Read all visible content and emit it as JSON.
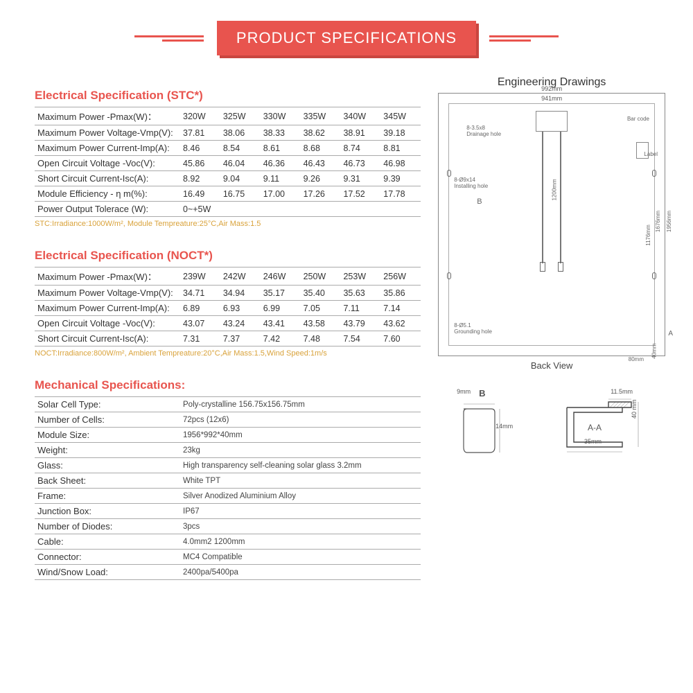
{
  "banner": {
    "title": "PRODUCT SPECIFICATIONS"
  },
  "colors": {
    "accent": "#e8544e",
    "note": "#d9a23a",
    "border": "#aaaaaa",
    "text": "#333333"
  },
  "stc": {
    "title": "Electrical Specification (STC*)",
    "rows": [
      {
        "label": "Maximum Power -Pmax(W)：",
        "vals": [
          "320W",
          "325W",
          "330W",
          "335W",
          "340W",
          "345W"
        ]
      },
      {
        "label": "Maximum Power Voltage-Vmp(V):",
        "vals": [
          "37.81",
          "38.06",
          "38.33",
          "38.62",
          "38.91",
          "39.18"
        ]
      },
      {
        "label": "Maximum Power Current-Imp(A):",
        "vals": [
          "8.46",
          "8.54",
          "8.61",
          "8.68",
          "8.74",
          "8.81"
        ]
      },
      {
        "label": "Open Circuit Voltage -Voc(V):",
        "vals": [
          "45.86",
          "46.04",
          "46.36",
          "46.43",
          "46.73",
          "46.98"
        ]
      },
      {
        "label": "Short Circuit Current-Isc(A):",
        "vals": [
          "8.92",
          "9.04",
          "9.11",
          "9.26",
          "9.31",
          "9.39"
        ]
      },
      {
        "label": "Module Efficiency - η m(%):",
        "vals": [
          "16.49",
          "16.75",
          "17.00",
          "17.26",
          "17.52",
          "17.78"
        ]
      },
      {
        "label": "Power Output Tolerace (W):",
        "tolerance": "0~+5W"
      }
    ],
    "note": "STC:Irradiance:1000W/m², Module Tempreature:25°C,Air Mass:1.5"
  },
  "noct": {
    "title": "Electrical Specification (NOCT*)",
    "rows": [
      {
        "label": "Maximum Power  -Pmax(W)：",
        "vals": [
          "239W",
          "242W",
          "246W",
          "250W",
          "253W",
          "256W"
        ]
      },
      {
        "label": "Maximum Power Voltage-Vmp(V):",
        "vals": [
          "34.71",
          "34.94",
          "35.17",
          "35.40",
          "35.63",
          "35.86"
        ]
      },
      {
        "label": "Maximum Power Current-Imp(A):",
        "vals": [
          "6.89",
          "6.93",
          "6.99",
          "7.05",
          "7.11",
          "7.14"
        ]
      },
      {
        "label": "Open Circuit Voltage -Voc(V):",
        "vals": [
          "43.07",
          "43.24",
          "43.41",
          "43.58",
          "43.79",
          "43.62"
        ]
      },
      {
        "label": "Short Circuit Current-Isc(A):",
        "vals": [
          "7.31",
          "7.37",
          "7.42",
          "7.48",
          "7.54",
          "7.60"
        ]
      }
    ],
    "note": "NOCT:Irradiance:800W/m², Ambient Tempreature:20°C,Air Mass:1.5,Wind Speed:1m/s"
  },
  "mech": {
    "title": "Mechanical Specifications:",
    "rows": [
      [
        "Solar Cell Type:",
        "Poly-crystalline 156.75x156.75mm"
      ],
      [
        "Number of Cells:",
        "72pcs  (12x6)"
      ],
      [
        "Module Size:",
        "1956*992*40mm"
      ],
      [
        "Weight:",
        "23kg"
      ],
      [
        "Glass:",
        "High transparency self-cleaning solar glass 3.2mm"
      ],
      [
        "Back Sheet:",
        "White TPT"
      ],
      [
        "Frame:",
        "Silver Anodized Aluminium Alloy"
      ],
      [
        "Junction Box:",
        "IP67"
      ],
      [
        "Number of Diodes:",
        "3pcs"
      ],
      [
        "Cable:",
        "4.0mm2  1200mm"
      ],
      [
        "Connector:",
        "MC4 Compatible"
      ],
      [
        "Wind/Snow Load:",
        "2400pa/5400pa"
      ]
    ]
  },
  "drawings": {
    "title": "Engineering Drawings",
    "back_view": "Back View",
    "width_outer": "992mm",
    "width_inner": "941mm",
    "height_outer": "1956mm",
    "height_inner": "1676mm",
    "height_mid": "1176mm",
    "cable_len": "1200mm",
    "drainage": "8-3.5x8\nDrainage hole",
    "installing": "8-Ø9x14\nInstalling hole",
    "grounding": "8-Ø5.1\nGrounding hole",
    "barcode": "Bar code",
    "label": "Label",
    "mark_a": "A",
    "mark_b": "B",
    "gap1": "40mm",
    "gap2": "80mm",
    "profile_b": {
      "label": "B",
      "w": "9mm",
      "h": "14mm"
    },
    "profile_a": {
      "label": "A-A",
      "w": "35mm",
      "h": "40 mm",
      "top": "11.5mm"
    }
  }
}
